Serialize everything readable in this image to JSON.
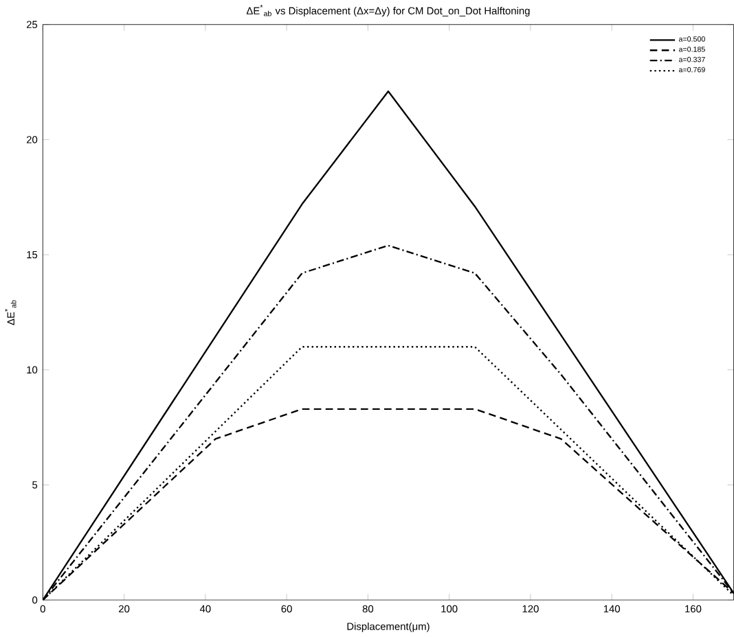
{
  "chart_data": {
    "type": "line",
    "title": "ΔE$^{*}$$_{ab}$ vs Displacement (Δx=Δy) for CM Dot_on_Dot Halftoning",
    "xlabel": "Displacement(μm)",
    "ylabel": "ΔE$^{*}$$_{ab}$",
    "xlim": [
      0,
      170
    ],
    "ylim": [
      0,
      25
    ],
    "xticks": [
      0,
      20,
      40,
      60,
      80,
      100,
      120,
      140,
      160
    ],
    "yticks": [
      0,
      5,
      10,
      15,
      20,
      25
    ],
    "legend": "top right",
    "grid": false,
    "marker": "none",
    "series": [
      {
        "name": "a=0.500",
        "color": "#000000",
        "line_style": "solid",
        "x": [
          0,
          63.8,
          85,
          106.3,
          170
        ],
        "values": [
          0,
          17.2,
          22.1,
          17.1,
          0.3
        ]
      },
      {
        "name": "a=0.185",
        "color": "#000000",
        "line_style": "dashed",
        "x": [
          0,
          42.5,
          63.8,
          85,
          106.3,
          127.5,
          170
        ],
        "values": [
          0,
          7.0,
          8.3,
          8.3,
          8.3,
          7.0,
          0.3
        ]
      },
      {
        "name": "a=0.337",
        "color": "#000000",
        "line_style": "dashdot",
        "x": [
          0,
          63.8,
          85,
          106.3,
          127.5,
          170
        ],
        "values": [
          0,
          14.2,
          15.4,
          14.2,
          9.8,
          0.3
        ]
      },
      {
        "name": "a=0.769",
        "color": "#000000",
        "line_style": "dotted",
        "x": [
          0,
          63.8,
          85,
          106.3,
          170
        ],
        "values": [
          0,
          11.0,
          11.0,
          11.0,
          0.2
        ]
      }
    ]
  }
}
